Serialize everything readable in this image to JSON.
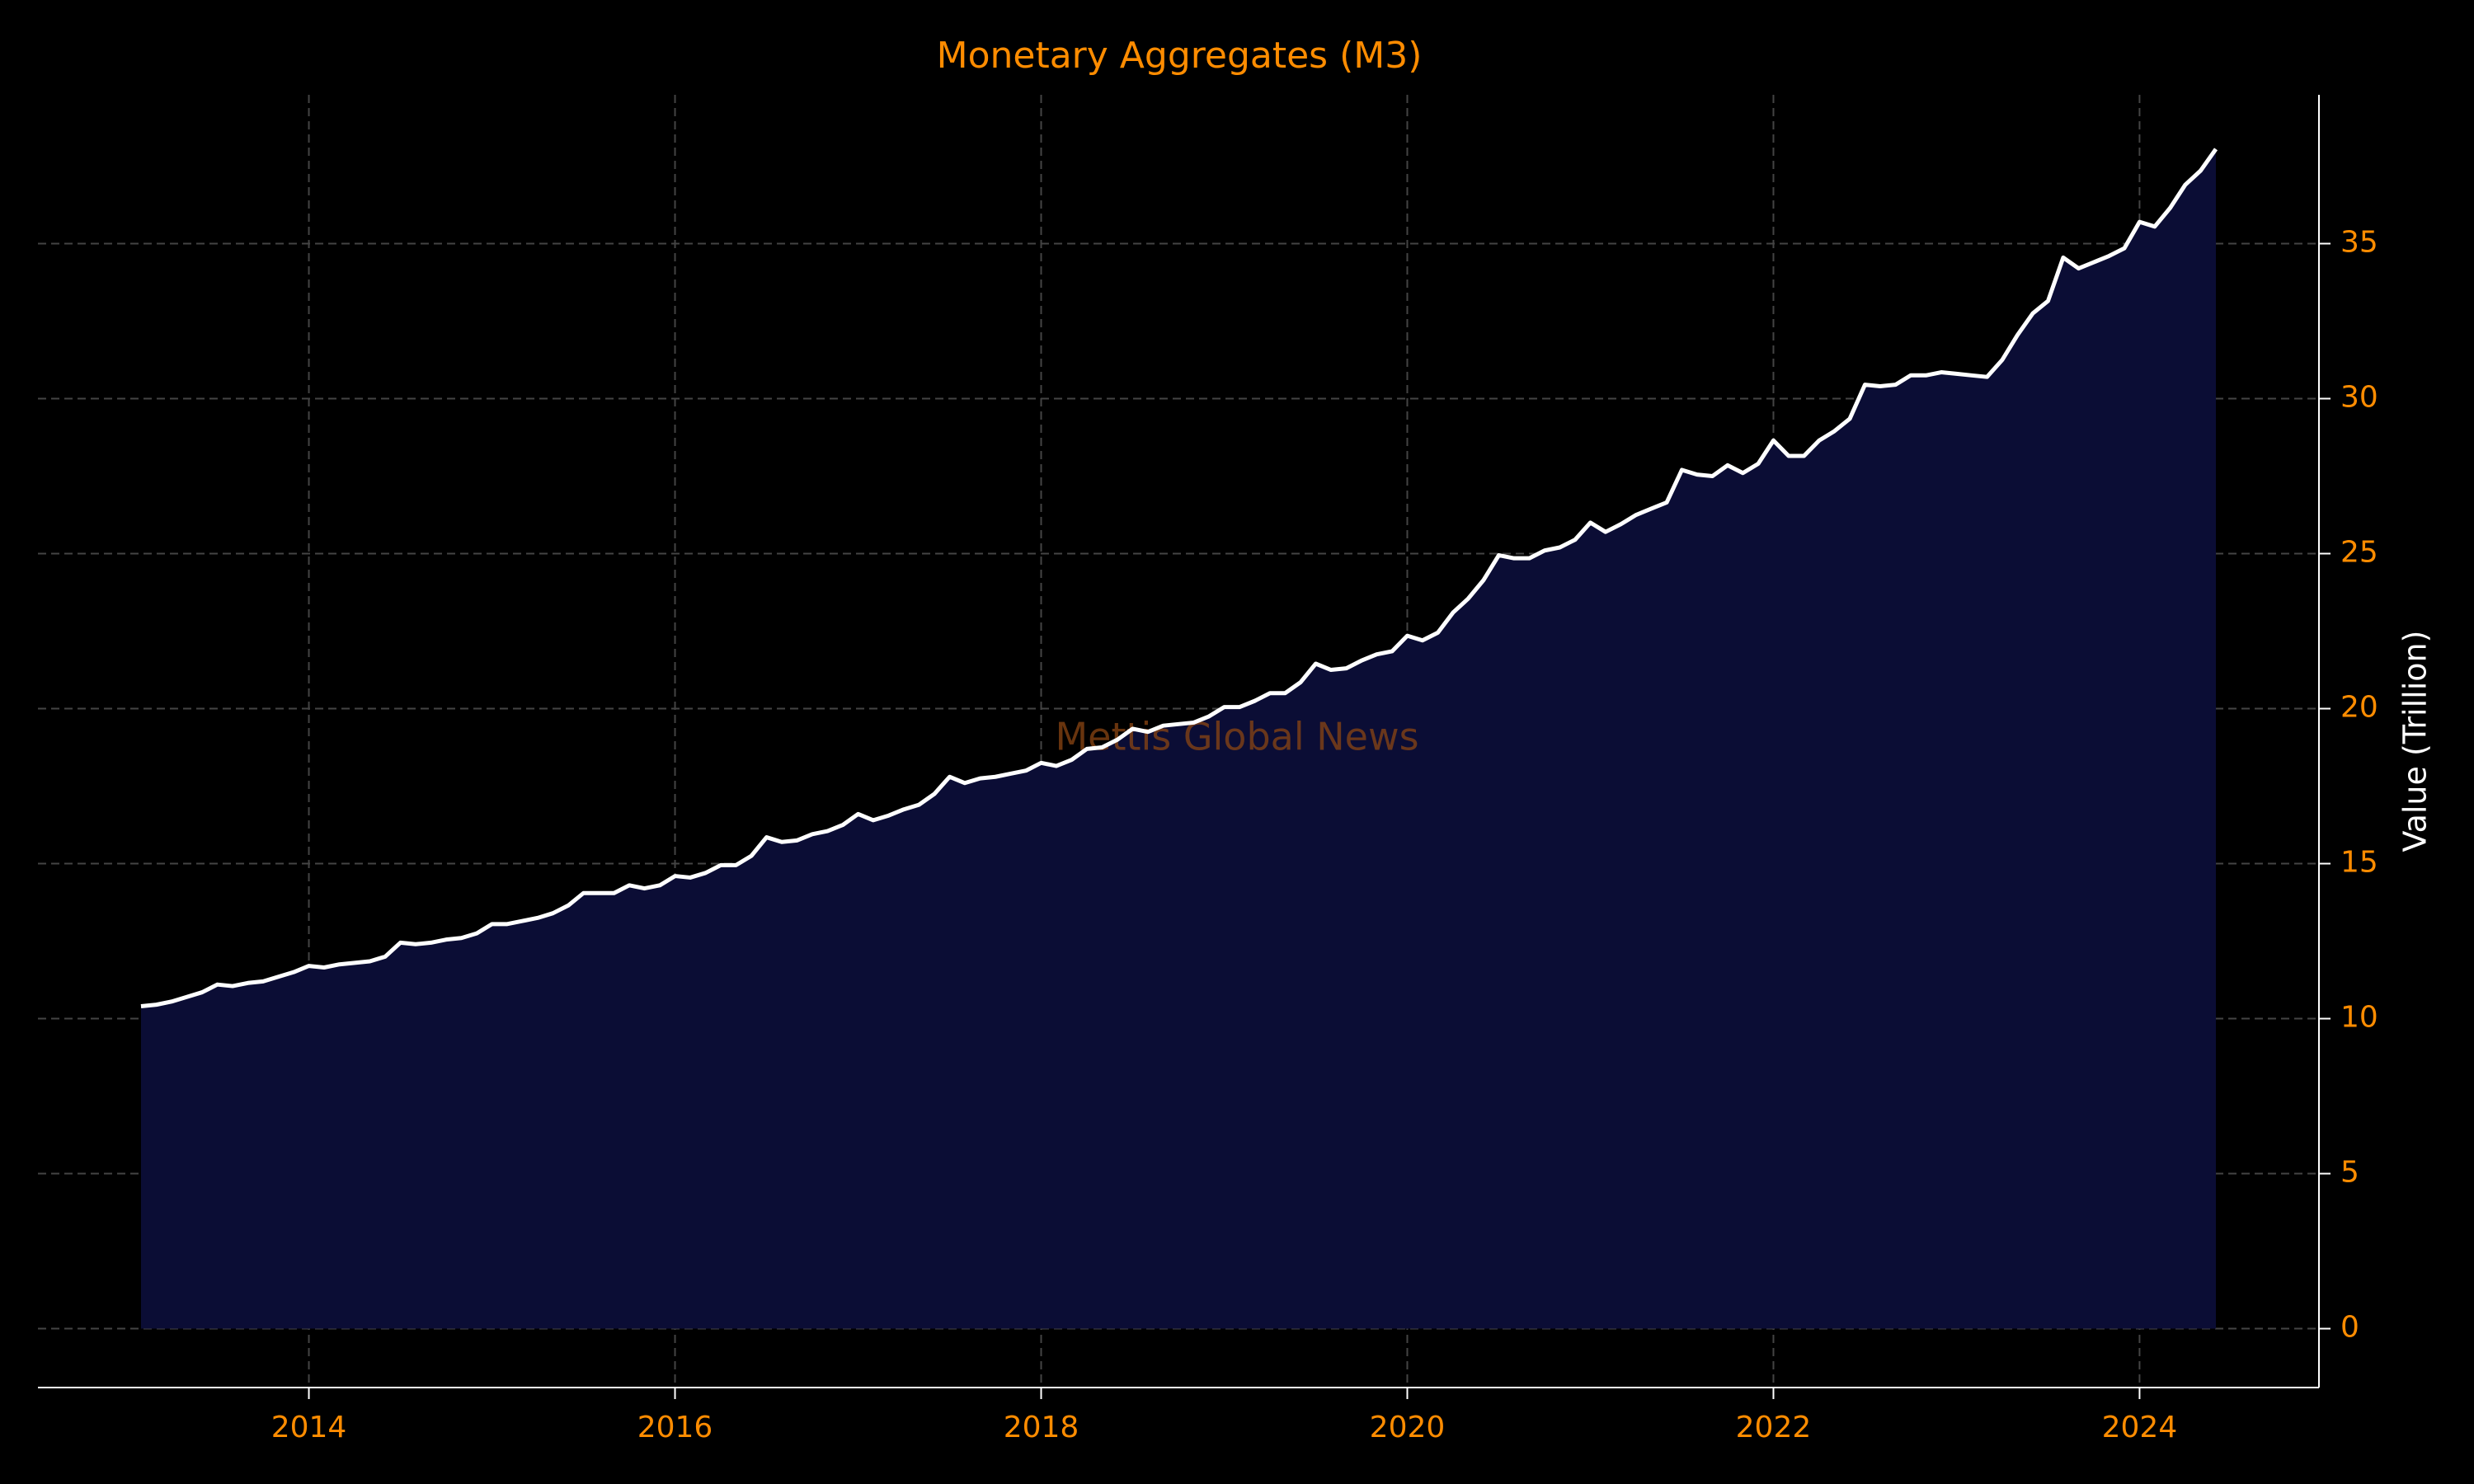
{
  "chart_data": {
    "type": "area",
    "title": "Monetary Aggregates (M3)",
    "y_label": "Value (Trillion)",
    "watermark": "Mettis Global News",
    "x": [
      2013.083,
      2013.167,
      2013.25,
      2013.333,
      2013.417,
      2013.5,
      2013.583,
      2013.667,
      2013.75,
      2013.833,
      2013.917,
      2014,
      2014.083,
      2014.167,
      2014.25,
      2014.333,
      2014.417,
      2014.5,
      2014.583,
      2014.667,
      2014.75,
      2014.833,
      2014.917,
      2015,
      2015.083,
      2015.167,
      2015.25,
      2015.333,
      2015.417,
      2015.5,
      2015.583,
      2015.667,
      2015.75,
      2015.833,
      2015.917,
      2016,
      2016.083,
      2016.167,
      2016.25,
      2016.333,
      2016.417,
      2016.5,
      2016.583,
      2016.667,
      2016.75,
      2016.833,
      2016.917,
      2017,
      2017.083,
      2017.167,
      2017.25,
      2017.333,
      2017.417,
      2017.5,
      2017.583,
      2017.667,
      2017.75,
      2017.833,
      2017.917,
      2018,
      2018.083,
      2018.167,
      2018.25,
      2018.333,
      2018.417,
      2018.5,
      2018.583,
      2018.667,
      2018.75,
      2018.833,
      2018.917,
      2019,
      2019.083,
      2019.167,
      2019.25,
      2019.333,
      2019.417,
      2019.5,
      2019.583,
      2019.667,
      2019.75,
      2019.833,
      2019.917,
      2020,
      2020.083,
      2020.167,
      2020.25,
      2020.333,
      2020.417,
      2020.5,
      2020.583,
      2020.667,
      2020.75,
      2020.833,
      2020.917,
      2021,
      2021.083,
      2021.167,
      2021.25,
      2021.333,
      2021.417,
      2021.5,
      2021.583,
      2021.667,
      2021.75,
      2021.833,
      2021.917,
      2022,
      2022.083,
      2022.167,
      2022.25,
      2022.333,
      2022.417,
      2022.5,
      2022.583,
      2022.667,
      2022.75,
      2022.833,
      2022.917,
      2023,
      2023.083,
      2023.167,
      2023.25,
      2023.333,
      2023.417,
      2023.5,
      2023.583,
      2023.667,
      2023.75,
      2023.833,
      2023.917,
      2024,
      2024.083,
      2024.167,
      2024.25,
      2024.333,
      2024.417
    ],
    "series": [
      {
        "color": "#ffffff",
        "fill": "#0b0d35",
        "values": [
          10.4,
          10.45,
          10.55,
          10.7,
          10.85,
          11.1,
          11.05,
          11.15,
          11.2,
          11.35,
          11.5,
          11.7,
          11.65,
          11.75,
          11.8,
          11.85,
          12.0,
          12.45,
          12.4,
          12.45,
          12.55,
          12.6,
          12.75,
          13.05,
          13.05,
          13.15,
          13.25,
          13.4,
          13.65,
          14.05,
          14.05,
          14.05,
          14.3,
          14.2,
          14.3,
          14.6,
          14.55,
          14.7,
          14.95,
          14.95,
          15.25,
          15.85,
          15.7,
          15.75,
          15.95,
          16.05,
          16.25,
          16.6,
          16.4,
          16.55,
          16.75,
          16.9,
          17.25,
          17.8,
          17.6,
          17.75,
          17.8,
          17.9,
          18.0,
          18.25,
          18.15,
          18.35,
          18.7,
          18.75,
          19.0,
          19.35,
          19.25,
          19.45,
          19.5,
          19.55,
          19.75,
          20.05,
          20.05,
          20.25,
          20.5,
          20.5,
          20.85,
          21.45,
          21.25,
          21.3,
          21.55,
          21.75,
          21.85,
          22.35,
          22.2,
          22.45,
          23.1,
          23.55,
          24.15,
          24.95,
          24.85,
          24.85,
          25.1,
          25.2,
          25.45,
          26.0,
          25.7,
          25.95,
          26.25,
          26.45,
          26.65,
          27.7,
          27.55,
          27.5,
          27.85,
          27.6,
          27.9,
          28.65,
          28.15,
          28.15,
          28.65,
          28.95,
          29.35,
          30.45,
          30.4,
          30.45,
          30.75,
          30.75,
          30.85,
          30.8,
          30.75,
          30.7,
          31.25,
          32.05,
          32.75,
          33.15,
          34.55,
          34.2,
          34.4,
          34.6,
          34.85,
          35.7,
          35.55,
          36.15,
          36.9,
          37.35,
          38.05
        ]
      }
    ],
    "xlim": [
      2012.52,
      2024.98
    ],
    "xticks": [
      2014,
      2016,
      2018,
      2020,
      2022,
      2024
    ],
    "ylim": [
      -1.9,
      39.8
    ],
    "yticks": [
      0,
      5,
      10,
      15,
      20,
      25,
      30,
      35
    ],
    "grid": true
  }
}
